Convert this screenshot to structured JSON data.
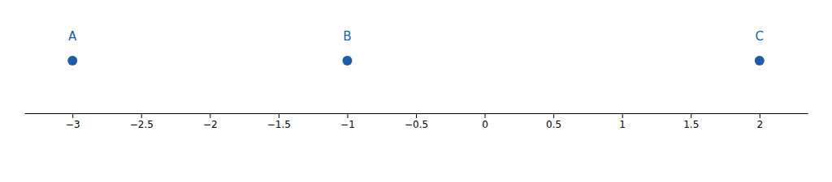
{
  "chart_data": {
    "type": "number_line",
    "x": [
      -3,
      -1,
      2
    ],
    "annotations": [
      "A",
      "B",
      "C"
    ],
    "color": "#1B5EA8",
    "xlim": [
      -3.35,
      2.35
    ],
    "xticks": [
      {
        "value": -3,
        "label": "−3"
      },
      {
        "value": -2.5,
        "label": "−2.5"
      },
      {
        "value": -2,
        "label": "−2"
      },
      {
        "value": -1.5,
        "label": "−1.5"
      },
      {
        "value": -1,
        "label": "−1"
      },
      {
        "value": -0.5,
        "label": "−0.5"
      },
      0,
      0.5,
      1,
      1.5,
      2
    ],
    "grid": false
  }
}
